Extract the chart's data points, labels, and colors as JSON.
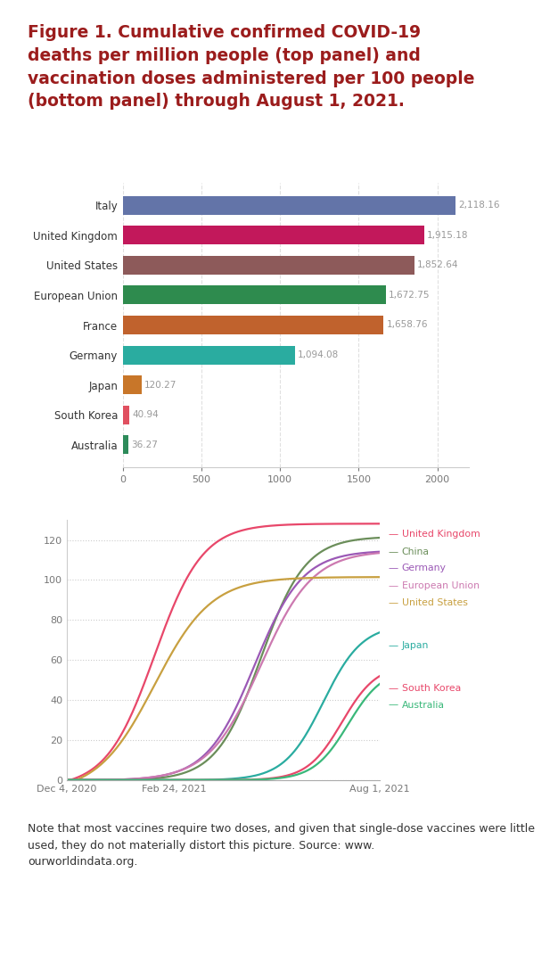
{
  "title": "Figure 1. Cumulative confirmed COVID-19\ndeaths per million people (top panel) and\nvaccination doses administered per 100 people\n(bottom panel) through August 1, 2021.",
  "title_color": "#9B1C1C",
  "note_text": "Note that most vaccines require two doses, and given that single-dose vaccines were little used, they do not materially distort this picture. Source: www.\nourworldindata.org.",
  "bar_countries": [
    "Italy",
    "United Kingdom",
    "United States",
    "European Union",
    "France",
    "Germany",
    "Japan",
    "South Korea",
    "Australia"
  ],
  "bar_values": [
    2118.16,
    1915.18,
    1852.64,
    1672.75,
    1658.76,
    1094.08,
    120.27,
    40.94,
    36.27
  ],
  "bar_colors": [
    "#6374a8",
    "#c2185b",
    "#8d5a5a",
    "#2e8b4e",
    "#c0622d",
    "#2aaca0",
    "#c87629",
    "#e05060",
    "#2d8b5a"
  ],
  "bar_xticks": [
    0,
    500,
    1000,
    1500,
    2000
  ],
  "line_countries": [
    "United Kingdom",
    "China",
    "Germany",
    "European Union",
    "United States",
    "Japan",
    "South Korea",
    "Australia"
  ],
  "line_colors": [
    "#e8476a",
    "#6b8e5a",
    "#9b59b6",
    "#cc79b0",
    "#c8a040",
    "#2aaca0",
    "#e8476a",
    "#3ab87a"
  ],
  "line_ylim": [
    0,
    130
  ],
  "line_yticks": [
    0,
    20,
    40,
    60,
    80,
    100,
    120
  ],
  "line_xtick_labels": [
    "Dec 4, 2020",
    "Feb 24, 2021",
    "Aug 1, 2021"
  ],
  "n_days": 240,
  "background_color": "#ffffff"
}
